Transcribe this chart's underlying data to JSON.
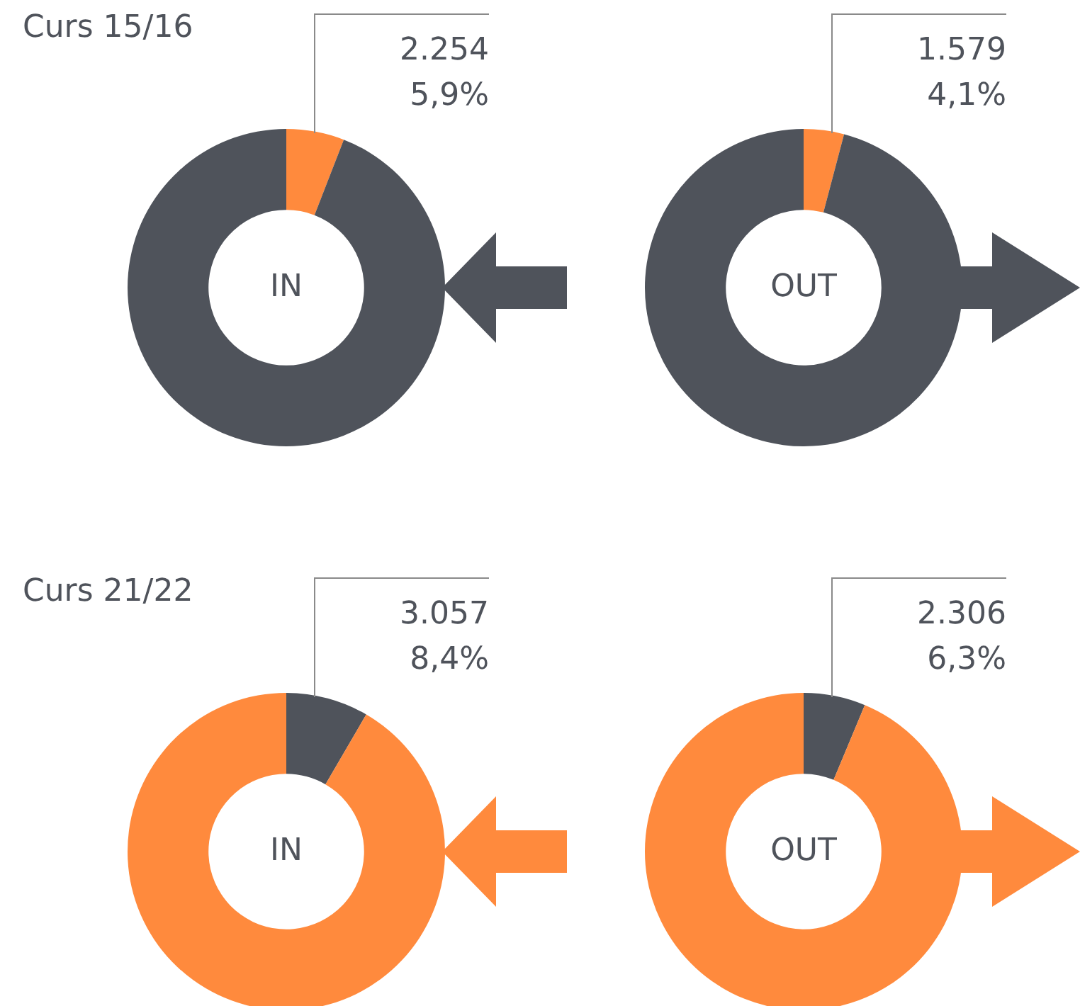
{
  "chart_data": [
    {
      "type": "donut",
      "subtitle": "Curs 15/16",
      "title": "IN",
      "categories": [
        null,
        null
      ],
      "values": [
        5.9,
        94.1
      ],
      "colors": [
        "#ff8a3d",
        "#4f535b"
      ],
      "annotations": [
        "2.254",
        "5,9%"
      ]
    },
    {
      "type": "donut",
      "title": "OUT",
      "categories": [
        null,
        null
      ],
      "values": [
        4.1,
        95.9
      ],
      "colors": [
        "#ff8a3d",
        "#4f535b"
      ],
      "annotations": [
        "1.579",
        "4,1%"
      ]
    },
    {
      "type": "donut",
      "subtitle": "Curs 21/22",
      "title": "IN",
      "categories": [
        null,
        null
      ],
      "values": [
        8.4,
        91.6
      ],
      "colors": [
        "#4f535b",
        "#ff8a3d"
      ],
      "annotations": [
        "3.057",
        "8,4%"
      ]
    },
    {
      "type": "donut",
      "title": "OUT",
      "categories": [
        null,
        null
      ],
      "values": [
        6.3,
        93.7
      ],
      "colors": [
        "#4f535b",
        "#ff8a3d"
      ],
      "annotations": [
        "2.306",
        "6,3%"
      ]
    }
  ]
}
